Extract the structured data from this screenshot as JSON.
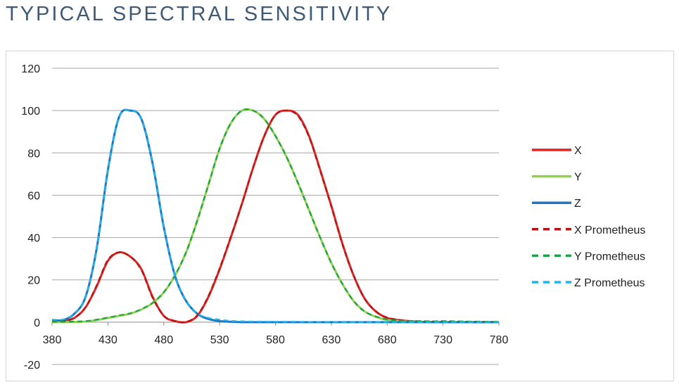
{
  "page": {
    "title": "TYPICAL SPECTRAL SENSITIVITY"
  },
  "chart_data": {
    "type": "line",
    "title": "",
    "xlabel": "",
    "ylabel": "",
    "xlim": [
      380,
      780
    ],
    "ylim": [
      -20,
      120
    ],
    "xticks": [
      380,
      430,
      480,
      530,
      580,
      630,
      680,
      730,
      780
    ],
    "yticks": [
      -20,
      0,
      20,
      40,
      60,
      80,
      100,
      120
    ],
    "grid": "horizontal",
    "legend": "right",
    "x": [
      380,
      390,
      400,
      410,
      420,
      430,
      440,
      450,
      460,
      470,
      480,
      490,
      500,
      510,
      520,
      530,
      540,
      550,
      560,
      570,
      580,
      590,
      600,
      610,
      620,
      630,
      640,
      650,
      660,
      670,
      680,
      690,
      700,
      710,
      720,
      730,
      740,
      750,
      760,
      770,
      780
    ],
    "series": [
      {
        "name": "X",
        "color": "#e02424",
        "dash": false,
        "values": [
          0.2,
          0.5,
          2,
          7,
          17,
          29,
          33,
          31,
          25,
          12,
          3,
          0.5,
          0,
          3,
          12,
          25,
          40,
          56,
          73,
          88,
          98,
          100,
          98,
          88,
          72,
          55,
          37,
          22,
          11,
          5,
          2,
          1,
          0.5,
          0.2,
          0.1,
          0,
          0,
          0,
          0,
          0,
          0
        ]
      },
      {
        "name": "Y",
        "color": "#92d050",
        "dash": false,
        "values": [
          0,
          0,
          0.1,
          0.3,
          1,
          2,
          3,
          4,
          6,
          9,
          14,
          22,
          33,
          48,
          65,
          82,
          94,
          100,
          100,
          96,
          88,
          78,
          66,
          53,
          40,
          28,
          18,
          10,
          5,
          2.5,
          1,
          0.5,
          0.2,
          0.1,
          0,
          0,
          0,
          0,
          0,
          0,
          0
        ]
      },
      {
        "name": "Z",
        "color": "#1f77c4",
        "dash": false,
        "values": [
          1,
          1,
          4,
          12,
          35,
          72,
          97,
          100,
          96,
          75,
          45,
          22,
          10,
          4,
          1.5,
          0.5,
          0.2,
          0,
          0,
          0,
          0,
          0,
          0,
          0,
          0,
          0,
          0,
          0,
          0,
          0,
          0,
          0,
          0,
          0,
          0,
          0,
          0,
          0,
          0,
          0,
          0
        ]
      },
      {
        "name": "X Prometheus",
        "color": "#b01818",
        "dash": true,
        "values": [
          0.3,
          0.6,
          2.2,
          7.2,
          17.5,
          29.5,
          33,
          31,
          24.5,
          11.5,
          3,
          0.6,
          0.2,
          3.3,
          12.5,
          25.5,
          40.5,
          56,
          73,
          88,
          98,
          100,
          97.5,
          87.5,
          71.5,
          54.5,
          36.5,
          22,
          11,
          5,
          2.2,
          1.2,
          0.6,
          0.5,
          0.4,
          0.5,
          0.4,
          0.3,
          0.3,
          0.2,
          0.2
        ]
      },
      {
        "name": "Y Prometheus",
        "color": "#1fa34a",
        "dash": true,
        "values": [
          0.2,
          0.2,
          0.3,
          0.5,
          1.2,
          2.2,
          3.2,
          4.2,
          6.2,
          9.2,
          14.2,
          22.2,
          33,
          48,
          65,
          82,
          94,
          100,
          100,
          96,
          88,
          78,
          66,
          53,
          40,
          28,
          18,
          10,
          5,
          2.7,
          1.3,
          0.7,
          0.5,
          0.5,
          0.4,
          0.4,
          0.3,
          0.3,
          0.2,
          0.2,
          0.2
        ]
      },
      {
        "name": "Z Prometheus",
        "color": "#1fb6e8",
        "dash": true,
        "values": [
          1.2,
          1.3,
          4.2,
          12,
          35,
          72,
          97,
          100,
          96,
          75,
          45,
          22,
          10.2,
          4.2,
          2,
          1.2,
          0.6,
          0.4,
          0.3,
          0.3,
          0.2,
          0.2,
          0.2,
          0.1,
          0.1,
          0.1,
          0,
          0,
          0,
          0,
          0,
          0,
          0,
          0,
          0,
          0,
          0,
          0,
          0,
          0,
          0
        ]
      }
    ]
  }
}
